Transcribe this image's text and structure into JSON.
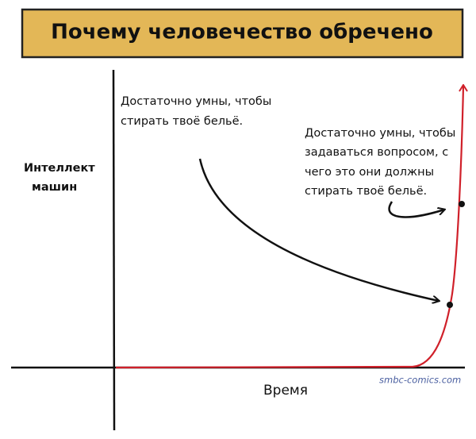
{
  "header": {
    "title": "Почему человечество обречено"
  },
  "axes": {
    "y_label": [
      "Интеллект",
      "машин"
    ],
    "x_label": "Время"
  },
  "annotations": [
    {
      "lines": [
        "Достаточно умны, чтобы",
        "стирать твоё бельё."
      ]
    },
    {
      "lines": [
        "Достаточно умны, чтобы",
        "задаваться вопросом, с",
        "чего это они должны",
        "стирать твоё бельё."
      ]
    }
  ],
  "credit": "smbc-comics.com"
}
